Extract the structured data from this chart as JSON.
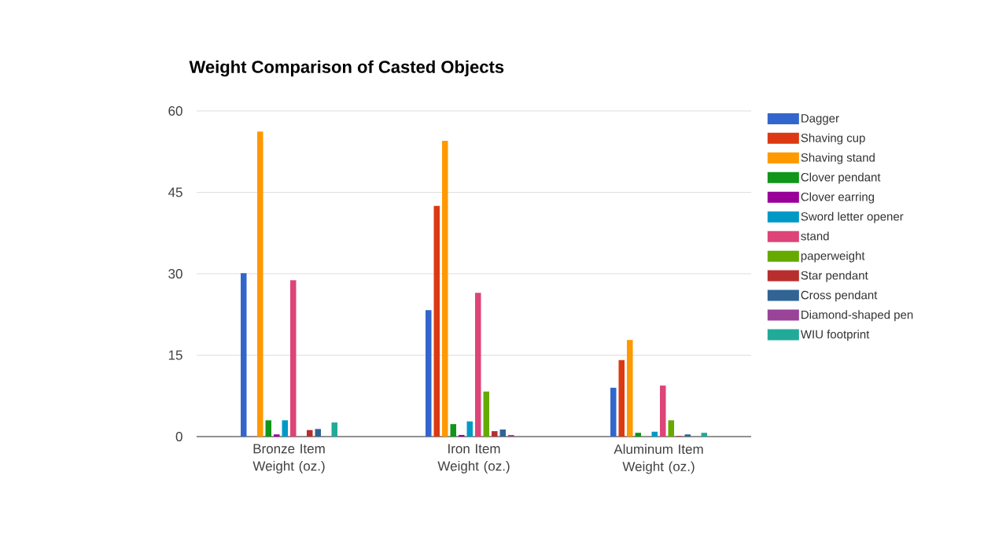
{
  "chart_data": {
    "type": "bar",
    "title": "Weight Comparison of Casted Objects",
    "categories": [
      "Bronze Item Weight (oz.)",
      "Iron Item Weight (oz.)",
      "Aluminum Item Weight (oz.)"
    ],
    "ylim": [
      0,
      60
    ],
    "yticks": [
      0,
      15,
      30,
      45,
      60
    ],
    "grid": "y",
    "legend": "right",
    "series": [
      {
        "name": "Dagger",
        "color": "#3366cc",
        "values": [
          30.1,
          23.3,
          9.0
        ]
      },
      {
        "name": "Shaving cup",
        "color": "#dc3912",
        "values": [
          null,
          42.5,
          14.1
        ]
      },
      {
        "name": "Shaving stand",
        "color": "#ff9900",
        "values": [
          56.2,
          54.5,
          17.8
        ]
      },
      {
        "name": "Clover pendant",
        "color": "#109618",
        "values": [
          3.0,
          2.3,
          0.7
        ]
      },
      {
        "name": "Clover earring",
        "color": "#990099",
        "values": [
          0.4,
          0.3,
          null
        ]
      },
      {
        "name": "Sword letter opener",
        "color": "#0099c6",
        "values": [
          3.0,
          2.8,
          0.9
        ]
      },
      {
        "name": "stand",
        "color": "#dd4477",
        "values": [
          28.8,
          26.5,
          9.4
        ]
      },
      {
        "name": "paperweight",
        "color": "#66aa00",
        "values": [
          null,
          8.3,
          3.0
        ]
      },
      {
        "name": "Star pendant",
        "color": "#b82e2e",
        "values": [
          1.2,
          1.0,
          0.1
        ]
      },
      {
        "name": "Cross pendant",
        "color": "#316395",
        "values": [
          1.4,
          1.3,
          0.4
        ]
      },
      {
        "name": "Diamond-shaped pen",
        "color": "#994499",
        "values": [
          null,
          0.3,
          null
        ]
      },
      {
        "name": "WIU footprint",
        "color": "#22aa99",
        "values": [
          2.6,
          null,
          0.7
        ]
      }
    ]
  }
}
